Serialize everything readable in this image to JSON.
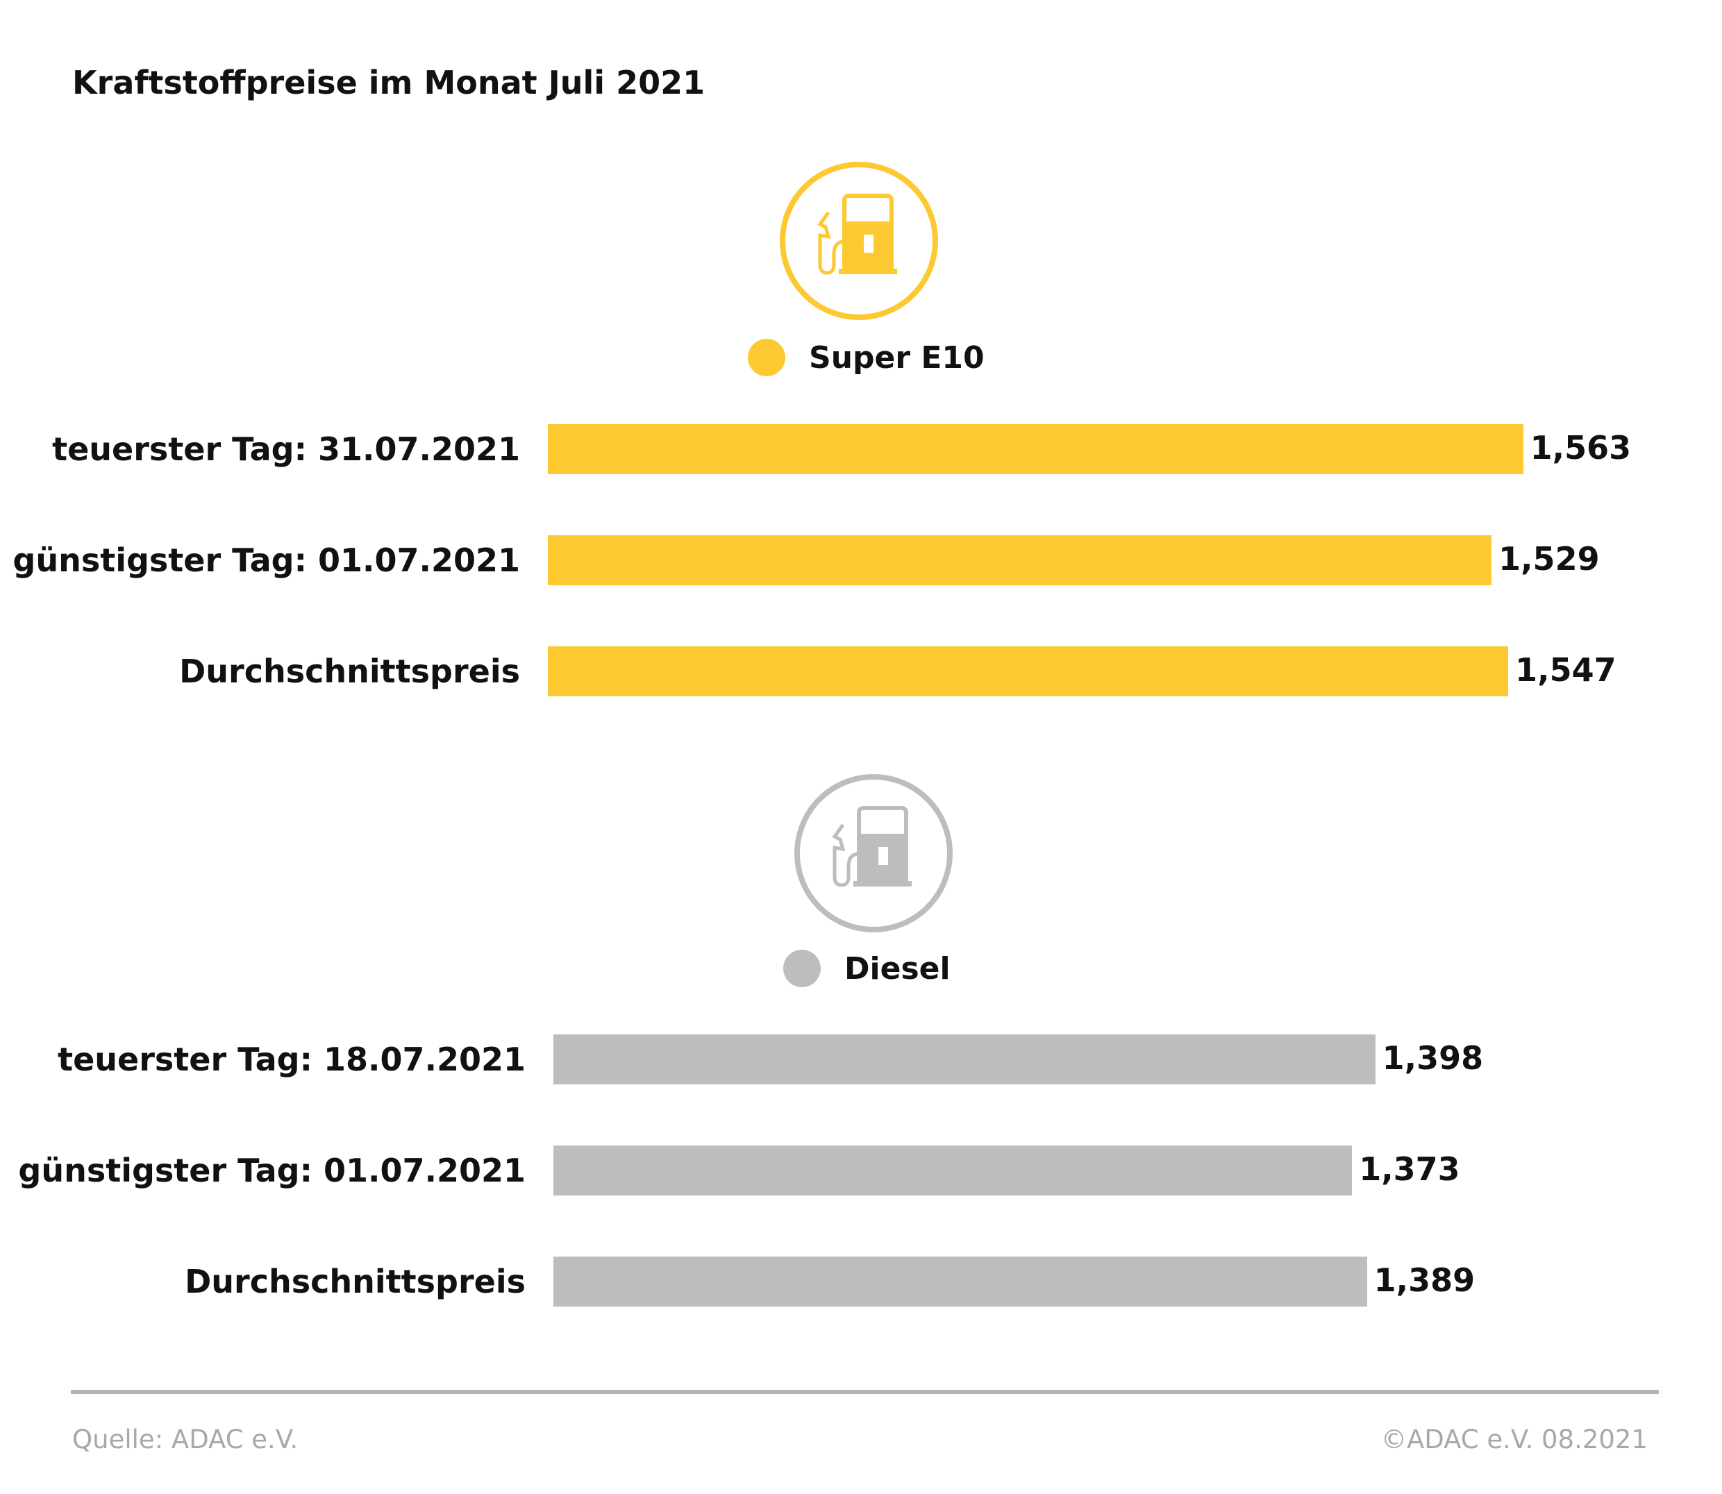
{
  "chart_data": {
    "type": "bar",
    "orientation": "horizontal",
    "title": "Kraftstoffpreise im Monat Juli 2021",
    "groups": [
      {
        "name": "Super E10",
        "color": "#fcc931",
        "icon": "fuel-pump-icon",
        "categories": [
          "teuerster Tag: 31.07.2021",
          "günstigster Tag: 01.07.2021",
          "Durchschnittspreis"
        ],
        "values": [
          1.563,
          1.529,
          1.547
        ],
        "value_labels": [
          "1,563",
          "1,529",
          "1,547"
        ]
      },
      {
        "name": "Diesel",
        "color": "#bdbdbd",
        "icon": "fuel-pump-icon",
        "categories": [
          "teuerster Tag: 18.07.2021",
          "günstigster Tag: 01.07.2021",
          "Durchschnittspreis"
        ],
        "values": [
          1.398,
          1.373,
          1.389
        ],
        "value_labels": [
          "1,398",
          "1,373",
          "1,389"
        ]
      }
    ]
  },
  "footer": {
    "source": "Quelle: ADAC e.V.",
    "copyright": "©ADAC e.V. 08.2021"
  }
}
